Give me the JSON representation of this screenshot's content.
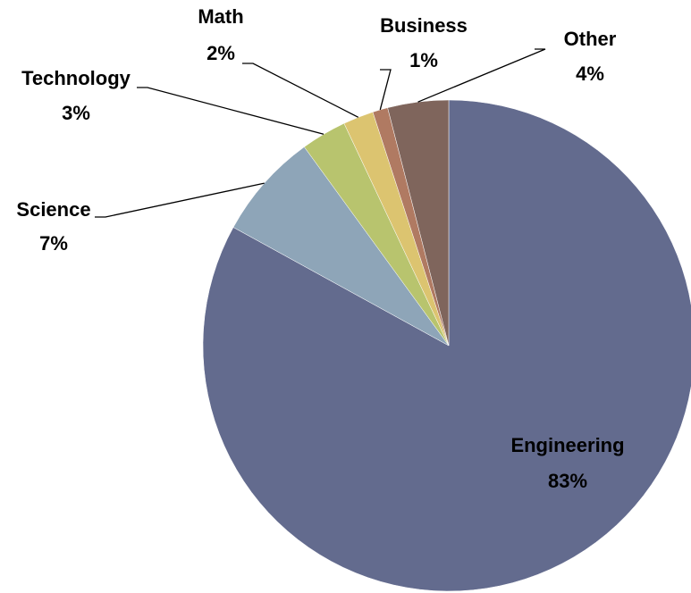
{
  "chart_data": {
    "type": "pie",
    "categories": [
      "Engineering",
      "Science",
      "Technology",
      "Math",
      "Business",
      "Other"
    ],
    "values": [
      83,
      7,
      3,
      2,
      1,
      4
    ],
    "value_labels": [
      "83%",
      "7%",
      "3%",
      "2%",
      "1%",
      "4%"
    ],
    "colors": [
      "#636b8e",
      "#8ea5b8",
      "#b8c46e",
      "#dcc470",
      "#b07a62",
      "#7f655c"
    ]
  }
}
